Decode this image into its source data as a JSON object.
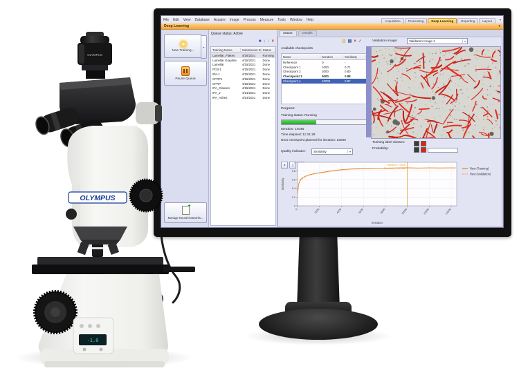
{
  "app": {
    "menu_items": [
      "File",
      "Edit",
      "View",
      "Database",
      "Acquire",
      "Image",
      "Process",
      "Measure",
      "Tools",
      "Window",
      "Help"
    ],
    "workspace_tabs": [
      {
        "label": "Acquisition",
        "active": false
      },
      {
        "label": "Processing",
        "active": false
      },
      {
        "label": "Deep Learning",
        "active": true
      },
      {
        "label": "Reporting",
        "active": false
      },
      {
        "label": "Layout",
        "active": false
      }
    ],
    "ribbon_title": "Deep Learning"
  },
  "tools_panel": {
    "new_training_label": "New Training...",
    "pause_queue_label": "Pause Queue",
    "manage_networks_label": "Manage Neural Networks..."
  },
  "queue_panel": {
    "header": "Queue status: Active",
    "columns": [
      "Training Name",
      "Submission Date",
      "Status"
    ],
    "rows": [
      {
        "name": "Lamellar_Flakes",
        "date": "4/16/2021",
        "status": "Running",
        "running": true
      },
      {
        "name": "Lamellar Graphite",
        "date": "4/15/2021",
        "status": "Done"
      },
      {
        "name": "Lamellar",
        "date": "4/15/2021",
        "status": "Done"
      },
      {
        "name": "PCB-1",
        "date": "4/15/2021",
        "status": "Done"
      },
      {
        "name": "IPA-1",
        "date": "4/15/2021",
        "status": "Done"
      },
      {
        "name": "CFRP1",
        "date": "4/15/2021",
        "status": "Done"
      },
      {
        "name": "CFRP",
        "date": "4/15/2021",
        "status": "Done"
      },
      {
        "name": "IPA_Classes",
        "date": "4/15/2021",
        "status": "Done"
      },
      {
        "name": "IPA_2",
        "date": "4/14/2021",
        "status": "Done"
      },
      {
        "name": "IPA_Ashes",
        "date": "4/14/2021",
        "status": "Done"
      }
    ]
  },
  "status_panel": {
    "tabs": [
      {
        "label": "Status",
        "active": true
      },
      {
        "label": "Details",
        "active": false
      }
    ],
    "checkpoints": {
      "title": "Available checkpoints",
      "columns": [
        "Name",
        "Iteration",
        "Similarity"
      ],
      "rows": [
        {
          "name": "Reference",
          "iteration": "0",
          "similarity": "-"
        },
        {
          "name": "Checkpoint 1",
          "iteration": "1000",
          "similarity": "0.71"
        },
        {
          "name": "Checkpoint 2",
          "iteration": "2000",
          "similarity": "0.80"
        },
        {
          "name": "Checkpoint 3",
          "iteration": "5000",
          "similarity": "0.88",
          "best": true
        },
        {
          "name": "Checkpoint 4",
          "iteration": "10000",
          "similarity": "0.87",
          "selected": true
        }
      ]
    },
    "progress": {
      "label": "Progress:",
      "training_status": "Training status: Running",
      "percent": 33,
      "iteration": "Iteration: 14045",
      "time_elapsed": "Time elapsed: 11:21:28",
      "next_checkpoint": "Next checkpoint planned for iteration: 15000"
    },
    "quality": {
      "label": "Quality indicator:",
      "value": "Similarity"
    },
    "validation": {
      "label": "Validation image:",
      "selected_image": "Validation Image 1",
      "classes_label": "Training label classes:",
      "probability_label": "Probability:",
      "class_color": "#d8251a",
      "background_class_color": "#3a3a3a"
    }
  },
  "chart_data": {
    "type": "line",
    "title": "",
    "xlabel": "Iteration",
    "ylabel": "Similarity",
    "xlim": [
      0,
      14500
    ],
    "ylim": [
      0,
      1
    ],
    "x_ticks": [
      0,
      2000,
      4000,
      6000,
      8000,
      10000,
      12000,
      14000
    ],
    "y_ticks": [
      0,
      0.2,
      0.4,
      0.6,
      0.8,
      1
    ],
    "grid": true,
    "legend_position": "right",
    "x": [
      0,
      100,
      250,
      500,
      800,
      1200,
      1700,
      2300,
      3000,
      4000,
      5000,
      6000,
      7000,
      8000,
      9000,
      10000,
      11000,
      12000,
      13000,
      14000,
      14400
    ],
    "series": [
      {
        "name": "Raw (Training)",
        "color": "#e0821e",
        "dash": "",
        "y": [
          0.27,
          0.5,
          0.6,
          0.65,
          0.69,
          0.72,
          0.75,
          0.77,
          0.8,
          0.83,
          0.85,
          0.86,
          0.862,
          0.866,
          0.87,
          0.873,
          0.869,
          0.872,
          0.87,
          0.872,
          0.871
        ]
      },
      {
        "name": "Raw (Validation)",
        "color": "#f2a968",
        "dash": "2,1.5",
        "y": [
          0.25,
          0.48,
          0.58,
          0.63,
          0.68,
          0.71,
          0.74,
          0.76,
          0.79,
          0.82,
          0.84,
          0.85,
          0.855,
          0.862,
          0.865,
          0.868,
          0.862,
          0.866,
          0.863,
          0.866,
          0.864
        ]
      }
    ],
    "marker": {
      "x": 10000,
      "color": "#e8a23c",
      "label_line1": "Iteration: 10000",
      "label_line2": "Similarity: 0.87352"
    }
  },
  "branding": {
    "microscope_logo": "OLYMPUS"
  }
}
